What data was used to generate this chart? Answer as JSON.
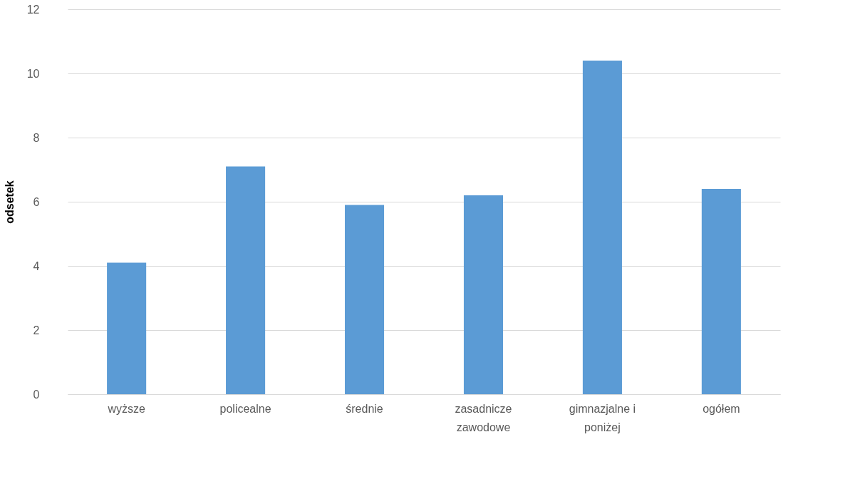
{
  "chart_data": {
    "type": "bar",
    "ylabel": "odsetek",
    "categories": [
      "wyższe",
      "policealne",
      "średnie",
      "zasadnicze zawodowe",
      "gimnazjalne i poniżej",
      "ogółem"
    ],
    "values": [
      4.1,
      7.1,
      5.9,
      6.2,
      10.4,
      6.4
    ],
    "color": "#5b9bd5",
    "ylim": [
      0,
      12
    ],
    "yticks": [
      0,
      2,
      4,
      6,
      8,
      10,
      12
    ],
    "grid": "y"
  }
}
